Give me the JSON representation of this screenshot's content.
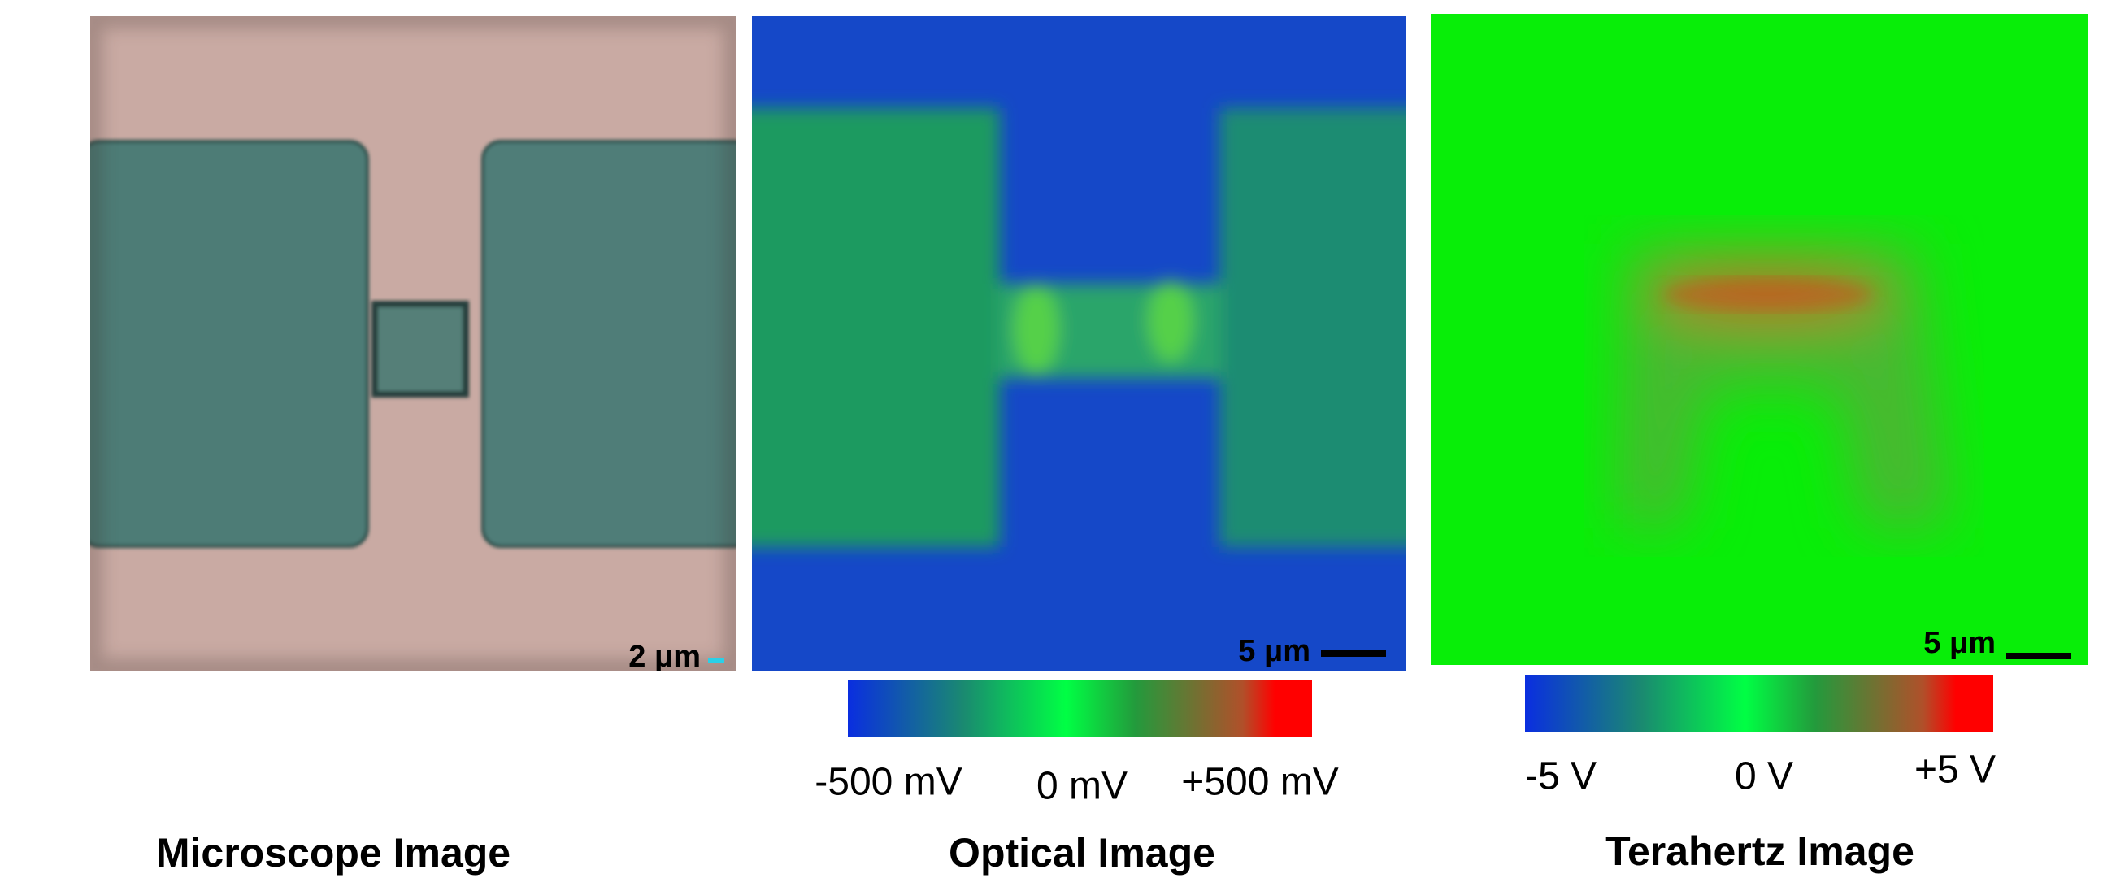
{
  "panels": [
    {
      "title": "Microscope Image",
      "scale_bar": "2 μm"
    },
    {
      "title": "Optical Image",
      "scale_bar": "5 μm",
      "colorbar": {
        "min_label": "-500 mV",
        "mid_label": "0 mV",
        "max_label": "+500 mV"
      }
    },
    {
      "title": "Terahertz Image",
      "scale_bar": "5 μm",
      "colorbar": {
        "min_label": "-5 V",
        "mid_label": "0 V",
        "max_label": "+5 V"
      }
    }
  ]
}
